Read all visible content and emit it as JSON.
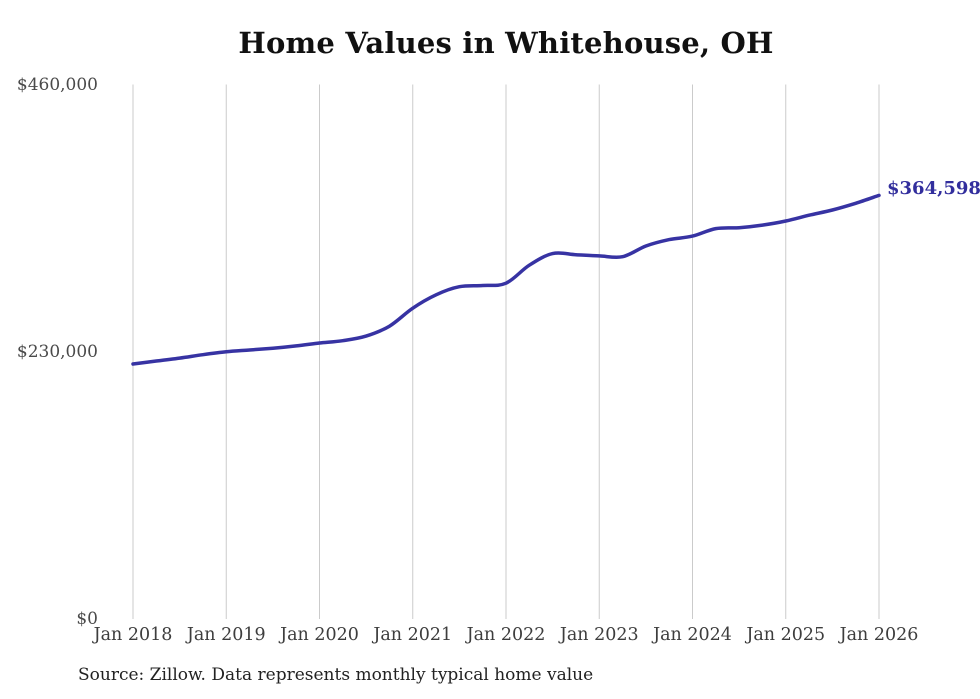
{
  "chart_data": {
    "type": "line",
    "title": "Home Values in Whitehouse, OH",
    "xlabel": "",
    "ylabel": "",
    "xlim_months": [
      0,
      96
    ],
    "ylim": [
      0,
      460000
    ],
    "grid": "vertical-only",
    "legend": "none",
    "line_color": "#3733a3",
    "grid_color": "#cbcbcb",
    "x_tick_labels": [
      "Jan 2018",
      "Jan 2019",
      "Jan 2020",
      "Jan 2021",
      "Jan 2022",
      "Jan 2023",
      "Jan 2024",
      "Jan 2025",
      "Jan 2026"
    ],
    "y_ticks": [
      {
        "value": 0,
        "label": "$0"
      },
      {
        "value": 230000,
        "label": "$230,000"
      },
      {
        "value": 460000,
        "label": "$460,000"
      }
    ],
    "series": [
      {
        "name": "Monthly typical home value",
        "x_months_from_jan2018": [
          0,
          3,
          6,
          9,
          12,
          15,
          18,
          21,
          24,
          27,
          30,
          33,
          36,
          39,
          42,
          45,
          48,
          51,
          54,
          57,
          60,
          63,
          66,
          69,
          72,
          75,
          78,
          81,
          84,
          87,
          90,
          93,
          96
        ],
        "values": [
          219500,
          222000,
          224500,
          227500,
          230000,
          231500,
          233000,
          235000,
          237500,
          239500,
          243500,
          252000,
          267500,
          279000,
          286000,
          287000,
          289000,
          304500,
          314500,
          313500,
          312500,
          311800,
          321000,
          326500,
          329500,
          336000,
          336800,
          339000,
          342500,
          347500,
          352000,
          357800,
          364598
        ]
      }
    ],
    "end_annotation": {
      "text": "$364,598",
      "value": 364598,
      "color": "#322e9d"
    }
  },
  "footer": {
    "source_note": "Source: Zillow. Data represents monthly typical home value"
  }
}
